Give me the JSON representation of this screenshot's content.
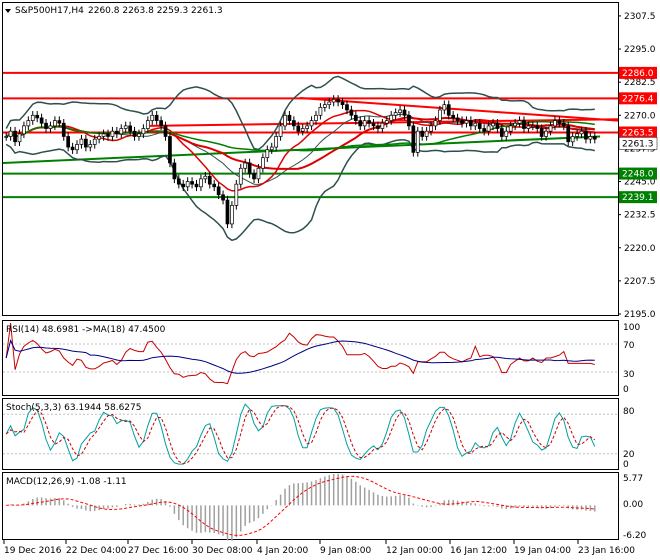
{
  "header": {
    "symbol_label": "S&P500H17,H4",
    "ohlc": "2260.8 2263.8 2259.3 2261.3"
  },
  "colors": {
    "candle_up": "#ffffff",
    "candle_down": "#000000",
    "bollinger": "#2f4f4f",
    "resistance": "#ff0000",
    "support": "#008000",
    "ma_red": "#dc0000",
    "ma_green": "#008000",
    "rsi": "#c80000",
    "rsi_ma": "#000080",
    "stoch_main": "#00a0a0",
    "stoch_signal": "#c80000",
    "macd_hist": "#a0a0a0",
    "macd_signal": "#ff0000"
  },
  "price_axis": {
    "ticks": [
      "2307.5",
      "2295.0",
      "2282.5",
      "2270.0",
      "2257.5",
      "2245.0",
      "2232.5",
      "2220.0",
      "2207.5",
      "2195.0"
    ]
  },
  "current_price": "2261.3",
  "levels": [
    {
      "label": "2286.0",
      "value": 2286.0,
      "type": "resistance"
    },
    {
      "label": "2276.4",
      "value": 2276.4,
      "type": "resistance"
    },
    {
      "label": "2263.5",
      "value": 2263.5,
      "type": "resistance"
    },
    {
      "label": "2248.0",
      "value": 2248.0,
      "type": "support"
    },
    {
      "label": "2239.1",
      "value": 2239.1,
      "type": "support"
    }
  ],
  "rsi_panel": {
    "label": "RSI(14) 48.6981 ->MA(18) 47.4500",
    "ticks": [
      "100",
      "70",
      "30",
      "0"
    ]
  },
  "stoch_panel": {
    "label": "Stoch(5,3,3) 63.1944 58.6275",
    "ticks": [
      "80",
      "20",
      "0"
    ]
  },
  "macd_panel": {
    "label": "MACD(12,26,9) -1.08 -1.11",
    "ticks": [
      "5.77",
      "0.00",
      "-6.20"
    ]
  },
  "time_axis": {
    "labels": [
      "19 Dec 2016",
      "22 Dec 04:00",
      "27 Dec 16:00",
      "30 Dec 08:00",
      "4 Jan 20:00",
      "9 Jan 08:00",
      "12 Jan 00:00",
      "16 Jan 12:00",
      "19 Jan 04:00",
      "23 Jan 16:00"
    ]
  },
  "chart_data": {
    "type": "candlestick",
    "instrument": "S&P500H17",
    "timeframe": "H4",
    "ylim": [
      2195.0,
      2312.0
    ],
    "closes": [
      2262,
      2264,
      2260,
      2263,
      2266,
      2268,
      2270,
      2269,
      2267,
      2265,
      2266,
      2268,
      2267,
      2262,
      2258,
      2257,
      2259,
      2261,
      2258,
      2259,
      2261,
      2262,
      2263,
      2262,
      2264,
      2263,
      2265,
      2266,
      2264,
      2262,
      2263,
      2265,
      2268,
      2270,
      2268,
      2266,
      2262,
      2252,
      2246,
      2244,
      2243,
      2245,
      2244,
      2243,
      2246,
      2247,
      2244,
      2243,
      2240,
      2238,
      2229,
      2236,
      2244,
      2250,
      2252,
      2248,
      2246,
      2250,
      2254,
      2257,
      2258,
      2262,
      2266,
      2270,
      2268,
      2266,
      2264,
      2265,
      2266,
      2268,
      2270,
      2273,
      2274,
      2275,
      2276,
      2275,
      2274,
      2272,
      2270,
      2268,
      2266,
      2268,
      2267,
      2266,
      2265,
      2267,
      2268,
      2270,
      2271,
      2272,
      2270,
      2266,
      2256,
      2264,
      2262,
      2264,
      2266,
      2268,
      2272,
      2274,
      2270,
      2269,
      2268,
      2267,
      2268,
      2266,
      2267,
      2265,
      2264,
      2266,
      2267,
      2265,
      2262,
      2264,
      2266,
      2267,
      2268,
      2265,
      2266,
      2266,
      2265,
      2262,
      2264,
      2266,
      2268,
      2267,
      2266,
      2260,
      2262,
      2263,
      2264,
      2261,
      2262,
      2261
    ],
    "rsi_ma_last": 47.45,
    "rsi_last": 48.6981,
    "stoch_main_last": 63.1944,
    "stoch_signal_last": 58.6275,
    "macd_last": -1.08,
    "macd_signal_last": -1.11
  }
}
